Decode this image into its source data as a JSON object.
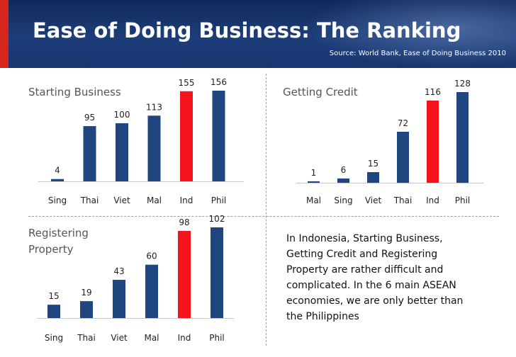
{
  "header": {
    "title": "Ease of Doing Business: The Ranking",
    "source": "Source:  World Bank, Ease of Doing Business 2010"
  },
  "note": {
    "lines": [
      "In Indonesia, Starting Business,",
      "Getting Credit and Registering",
      "Property are rather difficult and",
      "complicated. In the 6 main ASEAN",
      "economies, we are only better than",
      "the Philippines"
    ]
  },
  "colors": {
    "bar": "#1f467e",
    "highlight": "#f2141a"
  },
  "chart_data": [
    {
      "type": "bar",
      "title_lines": [
        "Starting Business"
      ],
      "categories": [
        "Sing",
        "Thai",
        "Viet",
        "Mal",
        "Ind",
        "Phil"
      ],
      "values": [
        4,
        95,
        100,
        113,
        155,
        156
      ],
      "highlight": "Ind",
      "xlabel": "",
      "ylabel": ""
    },
    {
      "type": "bar",
      "title_lines": [
        "Getting Credit"
      ],
      "categories": [
        "Mal",
        "Sing",
        "Viet",
        "Thai",
        "Ind",
        "Phil"
      ],
      "values": [
        1,
        6,
        15,
        72,
        116,
        128
      ],
      "highlight": "Ind",
      "xlabel": "",
      "ylabel": ""
    },
    {
      "type": "bar",
      "title_lines": [
        "Registering",
        "Property"
      ],
      "categories": [
        "Sing",
        "Thai",
        "Viet",
        "Mal",
        "Ind",
        "Phil"
      ],
      "values": [
        15,
        19,
        43,
        60,
        98,
        102
      ],
      "highlight": "Ind",
      "xlabel": "",
      "ylabel": ""
    }
  ]
}
